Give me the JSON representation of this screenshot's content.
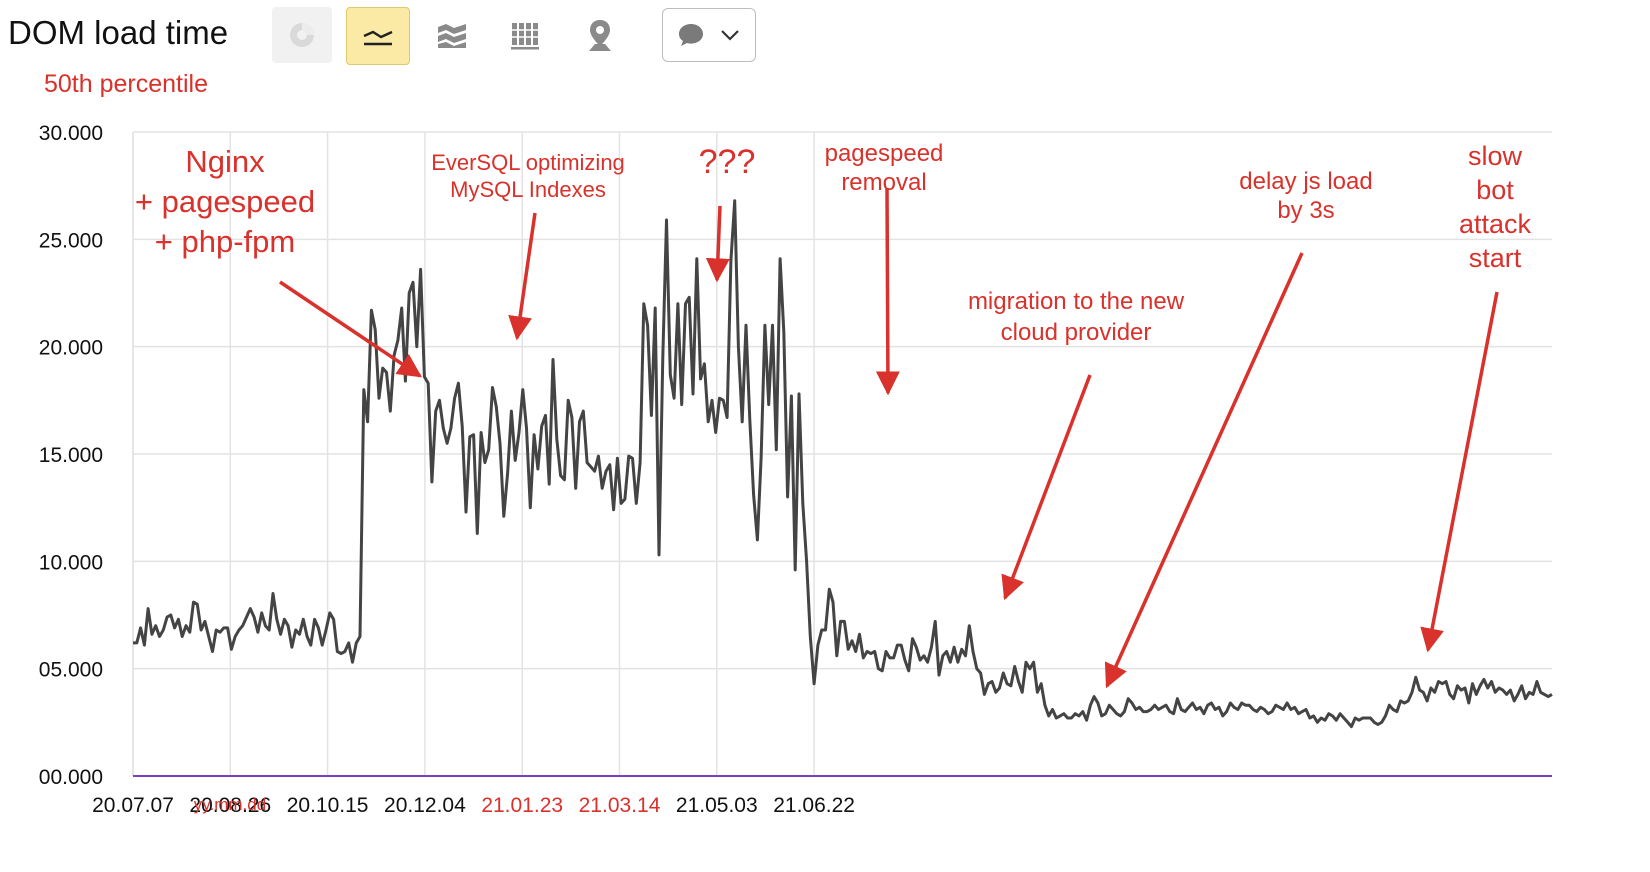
{
  "header": {
    "title": "DOM load time",
    "subtitle": "50th percentile"
  },
  "toolbar": {
    "buttons": [
      {
        "icon": "pie-chart-icon",
        "active": false
      },
      {
        "icon": "line-chart-icon",
        "active": true
      },
      {
        "icon": "area-chart-icon",
        "active": false
      },
      {
        "icon": "bar-chart-icon",
        "active": false
      },
      {
        "icon": "map-pin-icon",
        "active": false
      }
    ],
    "dropdown_icon": "comment-icon"
  },
  "colors": {
    "accent": "#d9312b",
    "line": "#444444",
    "grid": "#e3e3e3",
    "baseline": "#7b3fc1",
    "active_button": "#fbeaa6"
  },
  "chart_data": {
    "type": "line",
    "xlabel": "yy.mm.dd",
    "ylabel": "",
    "ylim": [
      0,
      30
    ],
    "yticks": [
      "00.000",
      "05.000",
      "10.000",
      "15.000",
      "20.000",
      "25.000",
      "30.000"
    ],
    "xticks": [
      {
        "label": "20.07.07",
        "day": 0,
        "highlight": false
      },
      {
        "label": "20.08.26",
        "day": 50,
        "highlight": false
      },
      {
        "label": "20.10.15",
        "day": 100,
        "highlight": false
      },
      {
        "label": "20.12.04",
        "day": 150,
        "highlight": false
      },
      {
        "label": "21.01.23",
        "day": 200,
        "highlight": true
      },
      {
        "label": "21.03.14",
        "day": 250,
        "highlight": true
      },
      {
        "label": "21.05.03",
        "day": 300,
        "highlight": false
      },
      {
        "label": "21.06.22",
        "day": 350,
        "highlight": false
      }
    ],
    "grid": true,
    "series": [
      {
        "values": [
          6.2,
          6.2,
          6.9,
          6.1,
          7.8,
          6.6,
          7.0,
          6.5,
          6.8,
          7.4,
          7.5,
          6.9,
          7.3,
          6.5,
          7.0,
          6.7,
          8.1,
          8.0,
          6.8,
          7.2,
          6.5,
          5.8,
          6.8,
          6.7,
          6.9,
          6.9,
          5.9,
          6.5,
          6.8,
          7.0,
          7.4,
          7.8,
          7.4,
          6.7,
          7.6,
          7.0,
          6.8,
          8.5,
          7.3,
          6.6,
          7.3,
          7.0,
          6.0,
          6.8,
          6.6,
          7.3,
          6.5,
          6.1,
          7.3,
          6.9,
          6.1,
          6.8,
          7.6,
          7.3,
          5.8,
          5.7,
          5.8,
          6.2,
          5.3,
          6.2,
          6.5,
          18.0,
          16.5,
          21.7,
          20.8,
          17.6,
          19.0,
          18.8,
          17.0,
          19.6,
          20.3,
          21.8,
          18.4,
          22.5,
          23.0,
          20.0,
          23.6,
          18.6,
          18.3,
          13.7,
          17.0,
          17.5,
          16.2,
          15.5,
          16.2,
          17.6,
          18.3,
          16.3,
          12.3,
          15.8,
          15.9,
          11.3,
          16.0,
          14.6,
          15.2,
          18.1,
          17.2,
          15.5,
          12.1,
          14.1,
          17.0,
          14.7,
          16.0,
          18.0,
          16.2,
          12.5,
          15.9,
          14.3,
          16.3,
          16.8,
          13.6,
          19.4,
          15.7,
          14.0,
          13.8,
          17.5,
          16.7,
          13.4,
          16.5,
          17.0,
          14.6,
          14.4,
          14.2,
          14.9,
          13.4,
          14.2,
          14.5,
          12.4,
          14.8,
          12.7,
          12.9,
          14.9,
          14.8,
          12.7,
          14.6,
          22.0,
          21.0,
          16.8,
          21.8,
          10.3,
          19.5,
          25.9,
          18.7,
          17.6,
          22.0,
          17.3,
          22.0,
          22.3,
          17.8,
          24.1,
          18.5,
          19.2,
          16.5,
          17.5,
          16.0,
          17.6,
          17.5,
          16.7,
          24.0,
          26.8,
          20.0,
          16.5,
          21.0,
          16.6,
          13.1,
          11.0,
          14.8,
          21.0,
          17.3,
          21.0,
          15.2,
          24.1,
          20.7,
          13.0,
          17.7,
          9.6,
          17.8,
          12.7,
          10.0,
          6.5,
          4.3,
          6.1,
          6.8,
          6.8,
          8.7,
          8.1,
          5.6,
          7.2,
          7.2,
          5.9,
          6.3,
          5.8,
          6.6,
          5.5,
          5.8,
          5.7,
          5.8,
          5.0,
          4.9,
          5.8,
          5.5,
          5.5,
          6.1,
          6.1,
          5.4,
          4.9,
          6.4,
          6.0,
          5.4,
          5.6,
          5.3,
          6.0,
          7.2,
          4.7,
          5.6,
          5.8,
          5.3,
          6.0,
          5.3,
          5.9,
          5.6,
          7.0,
          5.8,
          5.0,
          4.8,
          3.8,
          4.3,
          4.4,
          3.9,
          4.1,
          4.8,
          4.3,
          4.2,
          5.1,
          4.4,
          3.9,
          5.3,
          5.0,
          5.3,
          3.9,
          4.3,
          3.3,
          2.8,
          3.1,
          2.7,
          2.8,
          2.9,
          2.7,
          2.7,
          2.9,
          2.8,
          3.0,
          2.6,
          3.3,
          3.7,
          3.4,
          2.8,
          2.9,
          3.3,
          3.1,
          2.9,
          2.8,
          3.0,
          3.6,
          3.4,
          3.1,
          3.2,
          3.0,
          3.0,
          3.1,
          3.3,
          3.1,
          3.2,
          3.3,
          3.0,
          2.9,
          3.6,
          3.1,
          3.0,
          3.2,
          3.4,
          3.1,
          3.2,
          2.9,
          3.3,
          3.4,
          3.1,
          3.2,
          2.8,
          3.0,
          3.4,
          3.2,
          3.1,
          3.4,
          3.3,
          3.3,
          3.1,
          3.0,
          3.2,
          3.1,
          2.9,
          3.0,
          3.3,
          3.2,
          3.1,
          3.4,
          3.1,
          3.2,
          2.9,
          3.0,
          3.1,
          2.7,
          2.8,
          2.5,
          2.7,
          2.6,
          2.9,
          2.8,
          2.6,
          2.9,
          2.7,
          2.5,
          2.3,
          2.7,
          2.6,
          2.7,
          2.7,
          2.7,
          2.5,
          2.4,
          2.5,
          2.8,
          3.3,
          3.1,
          3.0,
          3.5,
          3.4,
          3.5,
          3.9,
          4.6,
          4.0,
          3.9,
          3.5,
          4.1,
          3.9,
          4.4,
          4.3,
          4.4,
          3.8,
          3.6,
          4.2,
          4.0,
          4.1,
          3.4,
          4.3,
          3.8,
          4.2,
          4.5,
          4.1,
          4.4,
          3.9,
          4.1,
          4.0,
          3.8,
          4.0,
          3.5,
          3.8,
          4.2,
          3.6,
          3.9,
          3.8,
          4.4,
          3.9,
          3.8,
          3.7,
          3.8
        ]
      }
    ],
    "annotations": [
      {
        "lines": [
          "Nginx",
          "+ pagespeed",
          "+ php-fpm"
        ]
      },
      {
        "lines": [
          "EverSQL optimizing",
          "MySQL Indexes"
        ]
      },
      {
        "lines": [
          "???"
        ]
      },
      {
        "lines": [
          "pagespeed",
          "removal"
        ]
      },
      {
        "lines": [
          "migration to the new",
          "cloud provider"
        ]
      },
      {
        "lines": [
          "delay js load",
          "by 3s"
        ]
      },
      {
        "lines": [
          "slow",
          "bot",
          "attack",
          "start"
        ]
      }
    ]
  }
}
